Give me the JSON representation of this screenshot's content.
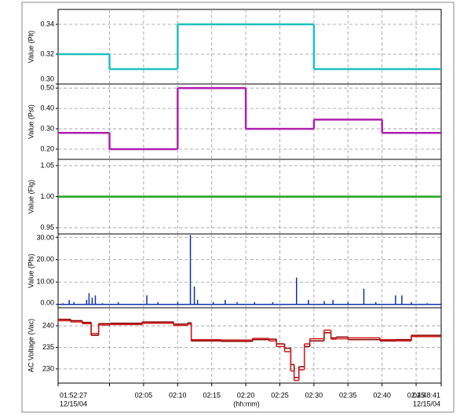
{
  "x_axis": {
    "label": "(hh:mm)",
    "xlim": [
      {
        "value": 112.45,
        "label": "01:52:27"
      },
      {
        "value": 168.68,
        "label": "02:48:41"
      }
    ],
    "date_labels": [
      "12/15/04",
      "12/15/04"
    ],
    "xticks": [
      {
        "value": 120,
        "label": null
      },
      {
        "value": 125,
        "label": "02:05"
      },
      {
        "value": 130,
        "label": "02:10"
      },
      {
        "value": 135,
        "label": "02:15"
      },
      {
        "value": 140,
        "label": "02:20"
      },
      {
        "value": 145,
        "label": "02:25"
      },
      {
        "value": 150,
        "label": "02:30"
      },
      {
        "value": 155,
        "label": "02:35"
      },
      {
        "value": 160,
        "label": "02:40"
      },
      {
        "value": 165,
        "label": "02:45"
      }
    ]
  },
  "chart_data": [
    {
      "type": "step",
      "y_label": "Value (Plt)",
      "ylim": [
        0.3,
        0.35
      ],
      "yticks": [
        0.34,
        0.32,
        {
          "value": 0.3,
          "label": "0.30"
        }
      ],
      "grid": true,
      "series": [
        {
          "color": "#20c0c0",
          "x": [
            112.45,
            120,
            130,
            150
          ],
          "values": [
            0.32,
            0.31,
            0.34,
            0.31
          ]
        }
      ]
    },
    {
      "type": "step",
      "y_label": "Value (Pst)",
      "ylim": [
        0.15,
        0.52
      ],
      "yticks": [
        {
          "value": 0.5,
          "label": "0.50"
        },
        {
          "value": 0.4,
          "label": "0.40"
        },
        {
          "value": 0.3,
          "label": "0.30"
        },
        {
          "value": 0.2,
          "label": "0.20"
        }
      ],
      "grid": true,
      "series": [
        {
          "color": "#b020b0",
          "x": [
            112.45,
            120,
            130,
            140,
            150,
            160
          ],
          "values": [
            0.28,
            0.2,
            0.5,
            0.3,
            0.345,
            0.28
          ]
        }
      ]
    },
    {
      "type": "step",
      "y_label": "Value (Flg)",
      "ylim": [
        0.94,
        1.06
      ],
      "yticks": [
        1.05,
        {
          "value": 1,
          "label": "1.00"
        },
        0.95
      ],
      "grid": true,
      "series": [
        {
          "color": "#20a020",
          "x": [
            112.45
          ],
          "values": [
            1
          ]
        }
      ]
    },
    {
      "type": "spike",
      "y_label": "Value (Pfs)",
      "ylim": [
        -1.5,
        31.5
      ],
      "yticks": [
        {
          "value": 30,
          "label": "30.00"
        },
        {
          "value": 20,
          "label": "20.00"
        },
        {
          "value": 10,
          "label": "10.00"
        },
        {
          "value": 0,
          "label": "0.00"
        }
      ],
      "grid": true,
      "series": [
        {
          "color": "#1030b0",
          "x": [
            113.15,
            114.08,
            114.78,
            116.64,
            116.99,
            117.45,
            117.92,
            118.96,
            121.29,
            125.47,
            127.1,
            130.01,
            131.87,
            132.45,
            132.92,
            135.24,
            136.98,
            138.73,
            141.29,
            143.96,
            147.45,
            149.2,
            151.52,
            152.8,
            155.01,
            157.33,
            159.08,
            161.98,
            162.91,
            164.31,
            166.64
          ],
          "values": [
            0.5,
            2,
            1,
            2,
            5,
            3,
            4,
            0.5,
            1,
            4,
            1,
            1,
            31,
            8,
            2,
            1,
            2,
            1,
            1,
            1,
            12,
            2,
            1.5,
            2,
            1,
            7,
            1,
            4,
            4,
            1,
            0.5
          ]
        }
      ]
    },
    {
      "type": "step",
      "y_label": "AC Voltage (Vac)",
      "ylim": [
        226.7,
        244.2
      ],
      "yticks": [
        240,
        235,
        230
      ],
      "grid": true,
      "series": [
        {
          "color": "#8b0000",
          "x": [
            112.45,
            114.3,
            116.0,
            117.3,
            118.4,
            120.1,
            124.8,
            129.4,
            131.5,
            132.0,
            136.4,
            141.0,
            143.4,
            144.5,
            145.7,
            146.6,
            147.1,
            147.8,
            148.6,
            149.4,
            151.5,
            152.5,
            153.3,
            155.0,
            159.7,
            162.0,
            164.3,
            168.68
          ],
          "values": [
            241.5,
            241.2,
            240.8,
            237.8,
            240.5,
            240.6,
            240.9,
            240.4,
            240.7,
            236.5,
            236.4,
            236.8,
            236.9,
            235.8,
            234.8,
            231.0,
            228.0,
            230.5,
            235.2,
            236.5,
            238.4,
            237.2,
            237.4,
            236.8,
            236.5,
            236.8,
            237.8,
            237.8
          ]
        },
        {
          "color": "#d01818",
          "x": [
            112.45,
            114.3,
            116.0,
            117.3,
            118.4,
            120.1,
            124.8,
            129.4,
            131.5,
            132.0,
            136.4,
            141.0,
            143.4,
            144.5,
            145.7,
            146.6,
            147.1,
            147.8,
            148.6,
            149.4,
            151.5,
            152.5,
            153.3,
            155.0,
            159.7,
            162.0,
            164.3,
            168.68
          ],
          "values": [
            241.2,
            240.9,
            240.5,
            238.2,
            240.2,
            240.3,
            240.6,
            240.1,
            240.4,
            236.8,
            236.7,
            237.1,
            236.5,
            235.2,
            234.0,
            229.5,
            227.3,
            229.8,
            235.8,
            237.0,
            239.0,
            236.9,
            237.0,
            237.2,
            236.8,
            236.5,
            237.5,
            237.5
          ]
        }
      ]
    }
  ]
}
